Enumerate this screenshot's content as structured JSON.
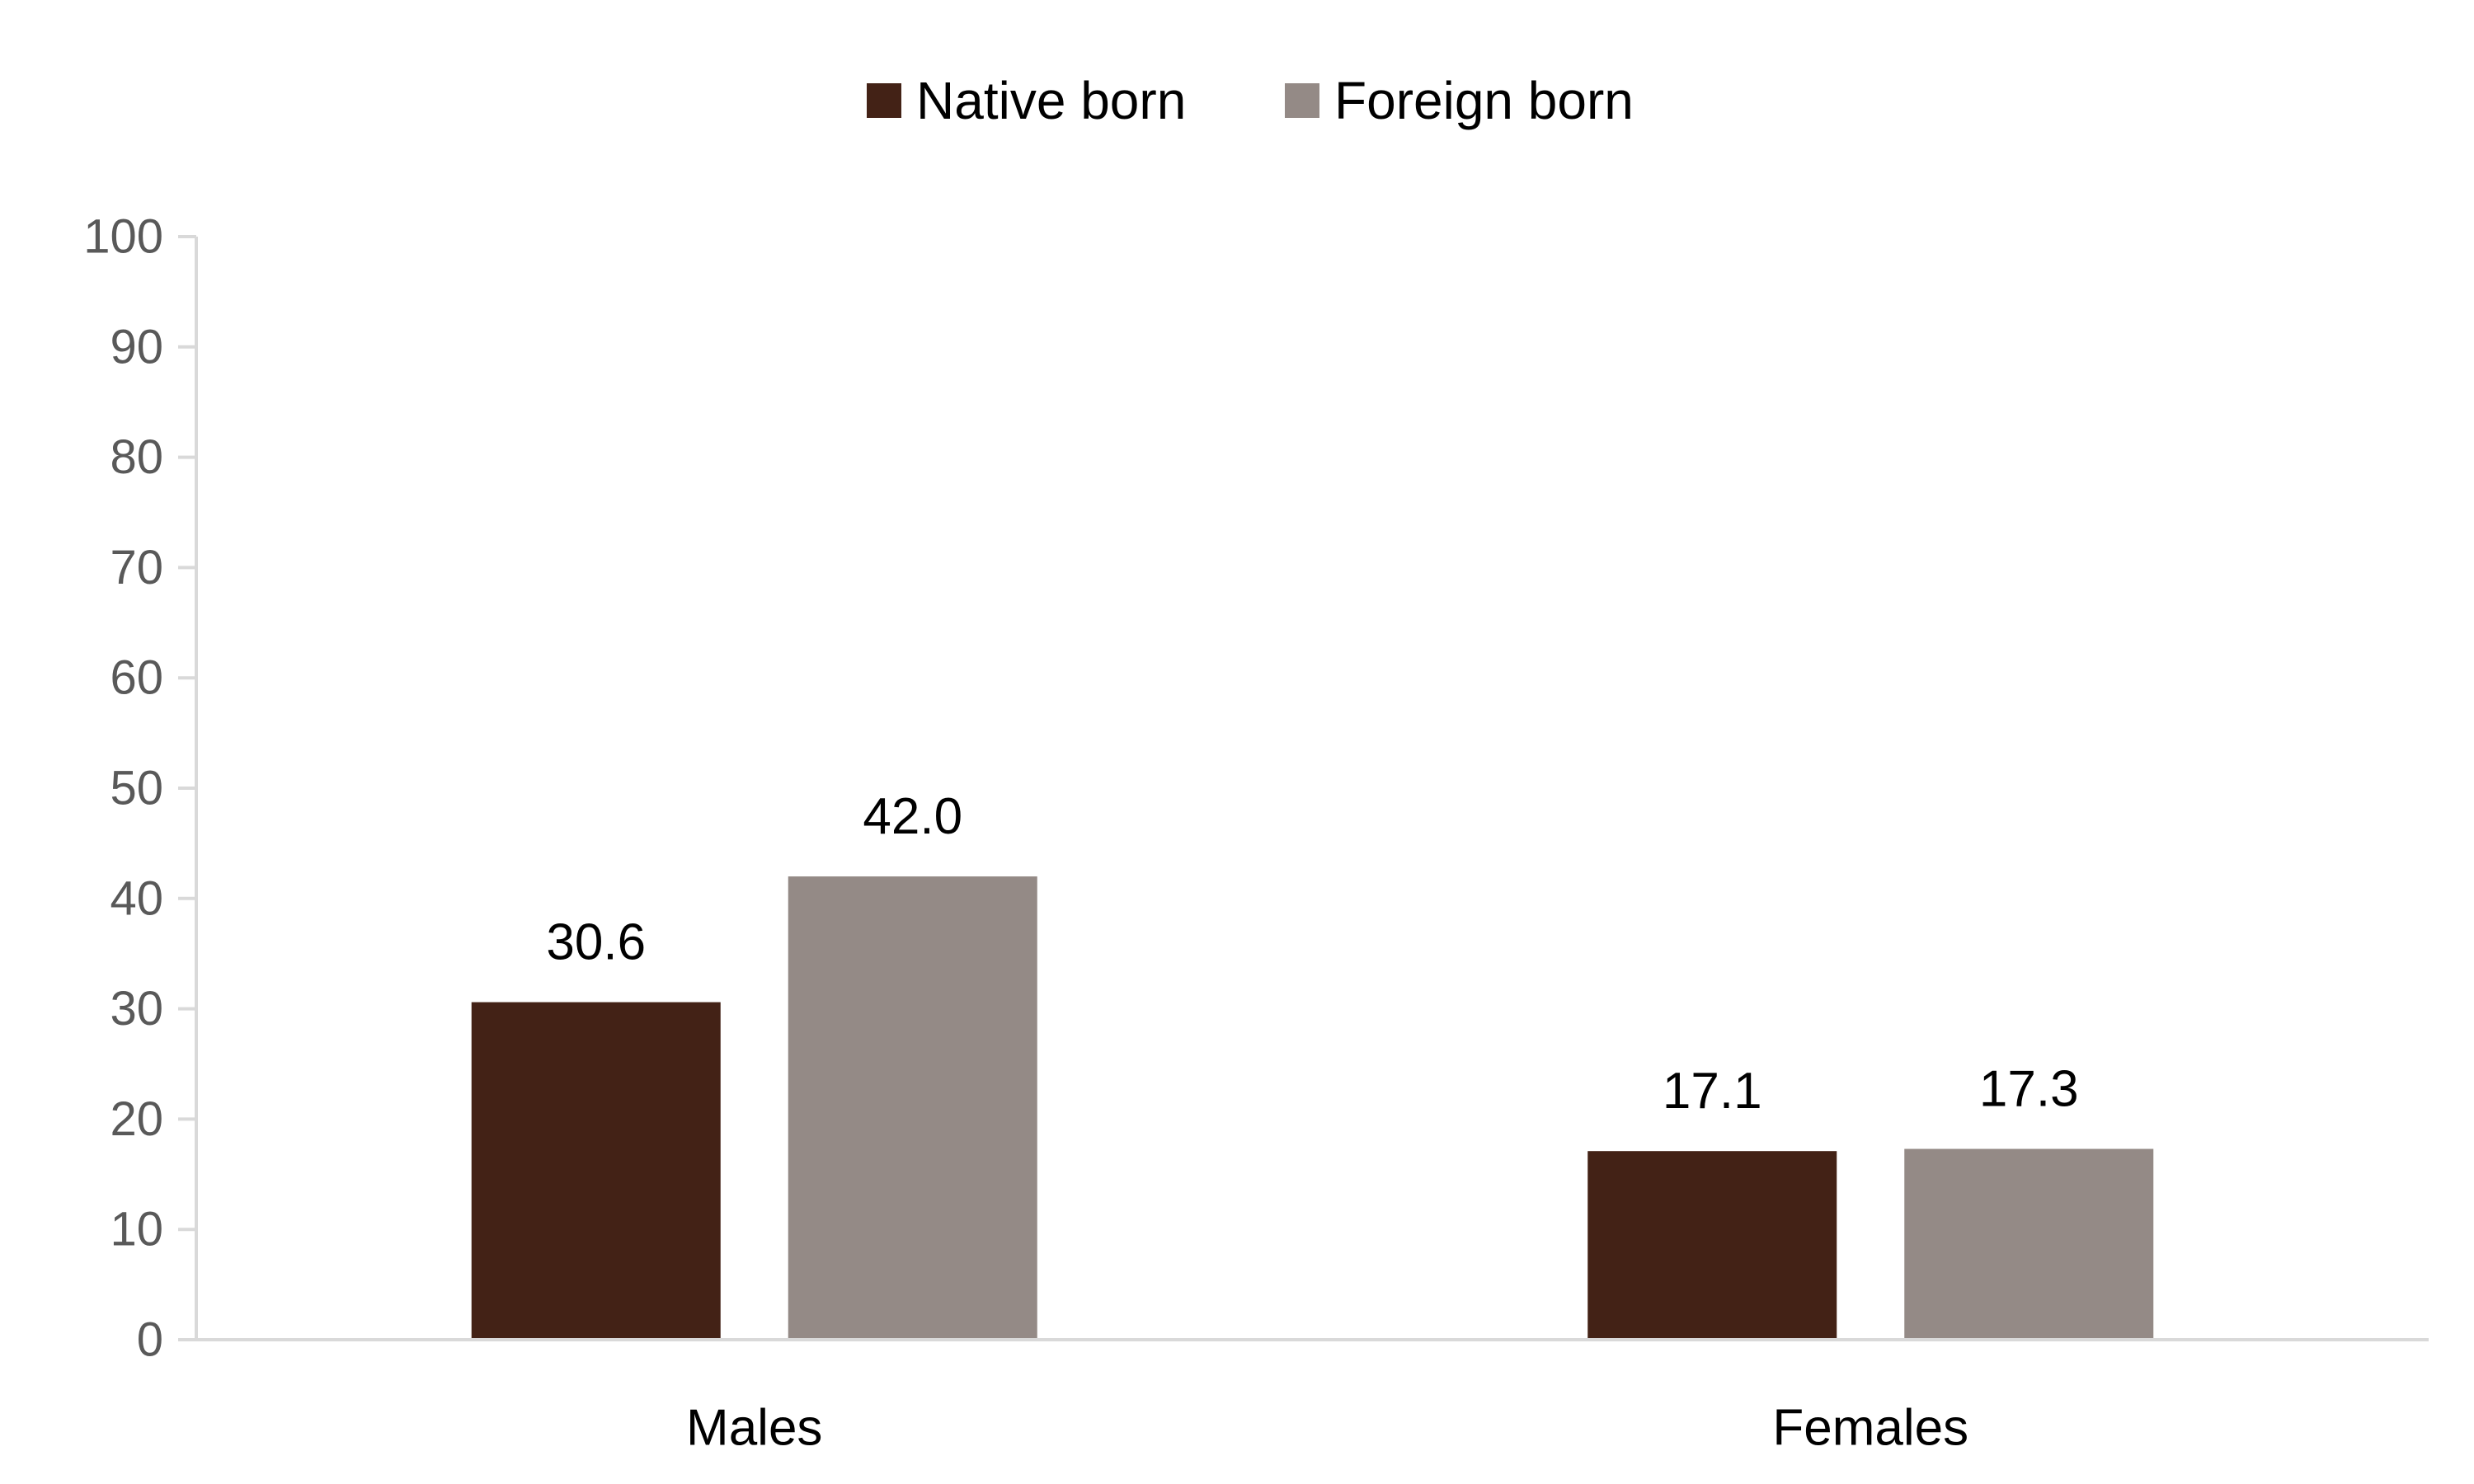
{
  "chart_data": {
    "type": "bar",
    "title": "",
    "xlabel": "",
    "ylabel": "",
    "categories": [
      "Males",
      "Females"
    ],
    "series": [
      {
        "name": "Native born",
        "values": [
          30.6,
          17.1
        ],
        "labels": [
          "30.6",
          "17.1"
        ],
        "color": "#432216"
      },
      {
        "name": "Foreign born",
        "values": [
          42.0,
          17.3
        ],
        "labels": [
          "42.0",
          "17.3"
        ],
        "color": "#948a86"
      }
    ],
    "ylim": [
      0,
      100
    ],
    "yticks": [
      0,
      10,
      20,
      30,
      40,
      50,
      60,
      70,
      80,
      90,
      100
    ],
    "grid": false,
    "legend_position": "top-center",
    "axis_color": "#d9d9d9"
  }
}
